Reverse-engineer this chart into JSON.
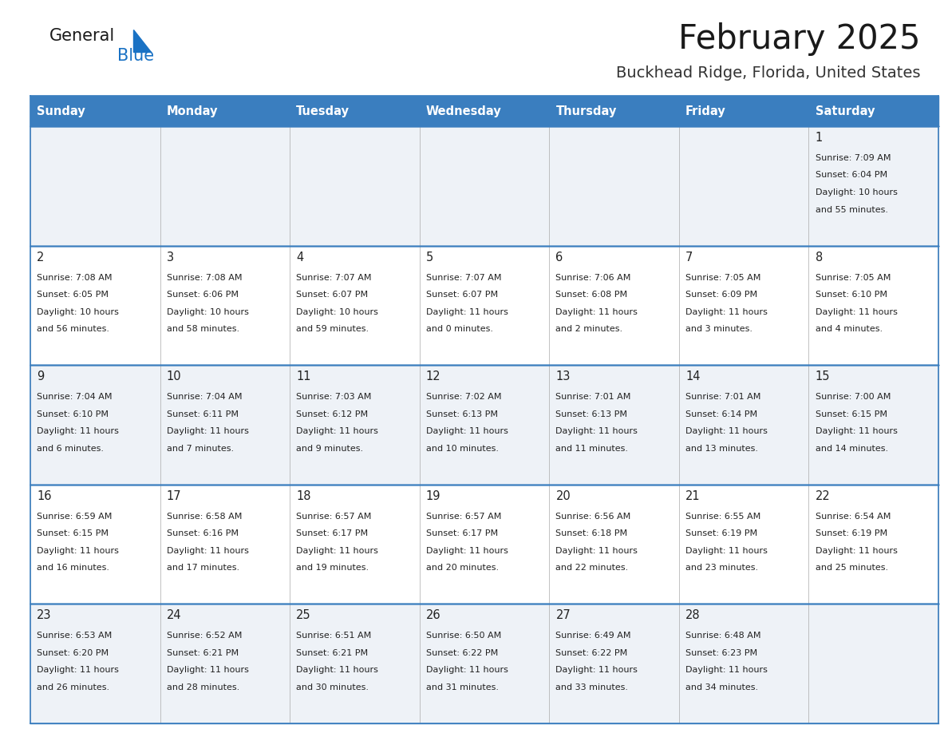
{
  "title": "February 2025",
  "subtitle": "Buckhead Ridge, Florida, United States",
  "days_of_week": [
    "Sunday",
    "Monday",
    "Tuesday",
    "Wednesday",
    "Thursday",
    "Friday",
    "Saturday"
  ],
  "header_bg": "#3a7ebf",
  "header_text": "#ffffff",
  "row_bg_odd": "#eef2f7",
  "row_bg_even": "#ffffff",
  "border_color": "#3a7ebf",
  "day_num_color": "#222222",
  "text_color": "#222222",
  "title_color": "#1a1a1a",
  "subtitle_color": "#333333",
  "logo_general_color": "#1a1a1a",
  "logo_blue_color": "#1a72c4",
  "calendar_data": [
    [
      null,
      null,
      null,
      null,
      null,
      null,
      {
        "day": "1",
        "sunrise": "7:09 AM",
        "sunset": "6:04 PM",
        "daylight": "10 hours",
        "daylight2": "and 55 minutes."
      }
    ],
    [
      {
        "day": "2",
        "sunrise": "7:08 AM",
        "sunset": "6:05 PM",
        "daylight": "10 hours",
        "daylight2": "and 56 minutes."
      },
      {
        "day": "3",
        "sunrise": "7:08 AM",
        "sunset": "6:06 PM",
        "daylight": "10 hours",
        "daylight2": "and 58 minutes."
      },
      {
        "day": "4",
        "sunrise": "7:07 AM",
        "sunset": "6:07 PM",
        "daylight": "10 hours",
        "daylight2": "and 59 minutes."
      },
      {
        "day": "5",
        "sunrise": "7:07 AM",
        "sunset": "6:07 PM",
        "daylight": "11 hours",
        "daylight2": "and 0 minutes."
      },
      {
        "day": "6",
        "sunrise": "7:06 AM",
        "sunset": "6:08 PM",
        "daylight": "11 hours",
        "daylight2": "and 2 minutes."
      },
      {
        "day": "7",
        "sunrise": "7:05 AM",
        "sunset": "6:09 PM",
        "daylight": "11 hours",
        "daylight2": "and 3 minutes."
      },
      {
        "day": "8",
        "sunrise": "7:05 AM",
        "sunset": "6:10 PM",
        "daylight": "11 hours",
        "daylight2": "and 4 minutes."
      }
    ],
    [
      {
        "day": "9",
        "sunrise": "7:04 AM",
        "sunset": "6:10 PM",
        "daylight": "11 hours",
        "daylight2": "and 6 minutes."
      },
      {
        "day": "10",
        "sunrise": "7:04 AM",
        "sunset": "6:11 PM",
        "daylight": "11 hours",
        "daylight2": "and 7 minutes."
      },
      {
        "day": "11",
        "sunrise": "7:03 AM",
        "sunset": "6:12 PM",
        "daylight": "11 hours",
        "daylight2": "and 9 minutes."
      },
      {
        "day": "12",
        "sunrise": "7:02 AM",
        "sunset": "6:13 PM",
        "daylight": "11 hours",
        "daylight2": "and 10 minutes."
      },
      {
        "day": "13",
        "sunrise": "7:01 AM",
        "sunset": "6:13 PM",
        "daylight": "11 hours",
        "daylight2": "and 11 minutes."
      },
      {
        "day": "14",
        "sunrise": "7:01 AM",
        "sunset": "6:14 PM",
        "daylight": "11 hours",
        "daylight2": "and 13 minutes."
      },
      {
        "day": "15",
        "sunrise": "7:00 AM",
        "sunset": "6:15 PM",
        "daylight": "11 hours",
        "daylight2": "and 14 minutes."
      }
    ],
    [
      {
        "day": "16",
        "sunrise": "6:59 AM",
        "sunset": "6:15 PM",
        "daylight": "11 hours",
        "daylight2": "and 16 minutes."
      },
      {
        "day": "17",
        "sunrise": "6:58 AM",
        "sunset": "6:16 PM",
        "daylight": "11 hours",
        "daylight2": "and 17 minutes."
      },
      {
        "day": "18",
        "sunrise": "6:57 AM",
        "sunset": "6:17 PM",
        "daylight": "11 hours",
        "daylight2": "and 19 minutes."
      },
      {
        "day": "19",
        "sunrise": "6:57 AM",
        "sunset": "6:17 PM",
        "daylight": "11 hours",
        "daylight2": "and 20 minutes."
      },
      {
        "day": "20",
        "sunrise": "6:56 AM",
        "sunset": "6:18 PM",
        "daylight": "11 hours",
        "daylight2": "and 22 minutes."
      },
      {
        "day": "21",
        "sunrise": "6:55 AM",
        "sunset": "6:19 PM",
        "daylight": "11 hours",
        "daylight2": "and 23 minutes."
      },
      {
        "day": "22",
        "sunrise": "6:54 AM",
        "sunset": "6:19 PM",
        "daylight": "11 hours",
        "daylight2": "and 25 minutes."
      }
    ],
    [
      {
        "day": "23",
        "sunrise": "6:53 AM",
        "sunset": "6:20 PM",
        "daylight": "11 hours",
        "daylight2": "and 26 minutes."
      },
      {
        "day": "24",
        "sunrise": "6:52 AM",
        "sunset": "6:21 PM",
        "daylight": "11 hours",
        "daylight2": "and 28 minutes."
      },
      {
        "day": "25",
        "sunrise": "6:51 AM",
        "sunset": "6:21 PM",
        "daylight": "11 hours",
        "daylight2": "and 30 minutes."
      },
      {
        "day": "26",
        "sunrise": "6:50 AM",
        "sunset": "6:22 PM",
        "daylight": "11 hours",
        "daylight2": "and 31 minutes."
      },
      {
        "day": "27",
        "sunrise": "6:49 AM",
        "sunset": "6:22 PM",
        "daylight": "11 hours",
        "daylight2": "and 33 minutes."
      },
      {
        "day": "28",
        "sunrise": "6:48 AM",
        "sunset": "6:23 PM",
        "daylight": "11 hours",
        "daylight2": "and 34 minutes."
      },
      null
    ]
  ],
  "num_rows": 5,
  "num_cols": 7,
  "fig_width": 11.88,
  "fig_height": 9.18,
  "dpi": 100
}
